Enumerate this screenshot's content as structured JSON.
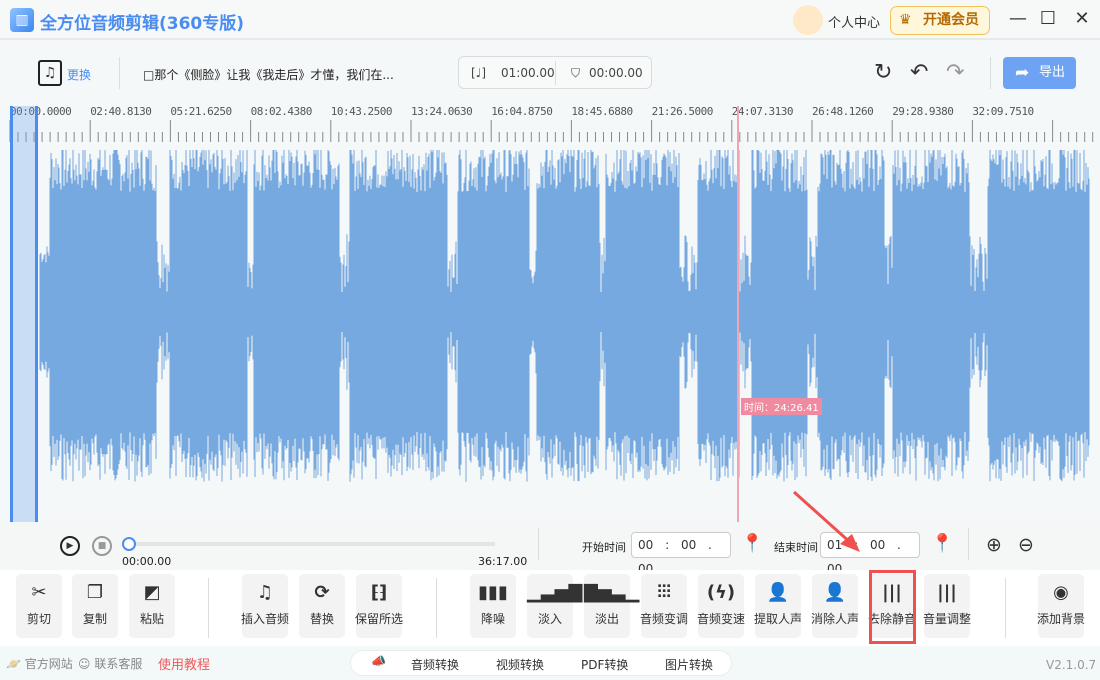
{
  "app": {
    "title": "全方位音频剪辑(360专版)",
    "logo_icon": "waveform-icon"
  },
  "user": {
    "label": "个人中心",
    "vip_label": "开通会员"
  },
  "toolbar": {
    "change_label": "更换",
    "song_title": "□那个《侧脸》让我《我走后》才懂，我们在...",
    "clip_duration": "01:00.00",
    "marker_time": "00:00.00",
    "export_label": "导出"
  },
  "ruler": {
    "labels": [
      "00:00.0000",
      "02:40.8130",
      "05:21.6250",
      "08:02.4380",
      "10:43.2500",
      "13:24.0630",
      "16:04.8750",
      "18:45.6880",
      "21:26.5000",
      "24:07.3130",
      "26:48.1260",
      "29:28.9380",
      "32:09.7510"
    ]
  },
  "playhead": {
    "tooltip": "时间：24:26.41"
  },
  "playback": {
    "current": "00:00.00",
    "total": "36:17.00",
    "progress": 0
  },
  "range": {
    "start_label": "开始时间",
    "start_value": "00 : 00 . 00",
    "end_label": "结束时间",
    "end_value": "01 : 00 . 00"
  },
  "tools": [
    {
      "label": "剪切",
      "icon": "scissors-icon",
      "glyph": "✂"
    },
    {
      "label": "复制",
      "icon": "copy-icon",
      "glyph": "❐"
    },
    {
      "label": "粘贴",
      "icon": "paste-icon",
      "glyph": "◩"
    },
    {
      "label": "插入音频",
      "icon": "insert-audio-icon",
      "glyph": "♫"
    },
    {
      "label": "替换",
      "icon": "replace-icon",
      "glyph": "⟳"
    },
    {
      "label": "保留所选",
      "icon": "keep-selection-icon",
      "glyph": "⁅⁆"
    },
    {
      "label": "降噪",
      "icon": "denoise-icon",
      "glyph": "▮▮▮"
    },
    {
      "label": "淡入",
      "icon": "fade-in-icon",
      "glyph": "▁▃▅▇"
    },
    {
      "label": "淡出",
      "icon": "fade-out-icon",
      "glyph": "▇▅▃▁"
    },
    {
      "label": "音频变调",
      "icon": "pitch-icon",
      "glyph": "⫶⫶⫶"
    },
    {
      "label": "音频变速",
      "icon": "speed-icon",
      "glyph": "(ϟ)"
    },
    {
      "label": "提取人声",
      "icon": "extract-vocal-icon",
      "glyph": "👤"
    },
    {
      "label": "消除人声",
      "icon": "remove-vocal-icon",
      "glyph": "👤"
    },
    {
      "label": "去除静音",
      "icon": "remove-silence-icon",
      "glyph": "|||"
    },
    {
      "label": "音量调整",
      "icon": "volume-icon",
      "glyph": "|||"
    },
    {
      "label": "添加背景",
      "icon": "add-background-icon",
      "glyph": "◉"
    }
  ],
  "footer": {
    "website": "官方网站",
    "support": "联系客服",
    "tutorial": "使用教程",
    "conversions": [
      "音频转换",
      "视频转换",
      "PDF转换",
      "图片转换"
    ],
    "version": "V2.1.0.7"
  },
  "colors": {
    "accent": "#4a8cf0",
    "waveform": "#76a9e0",
    "playhead": "#f4a5b5",
    "highlight": "#f05050"
  }
}
